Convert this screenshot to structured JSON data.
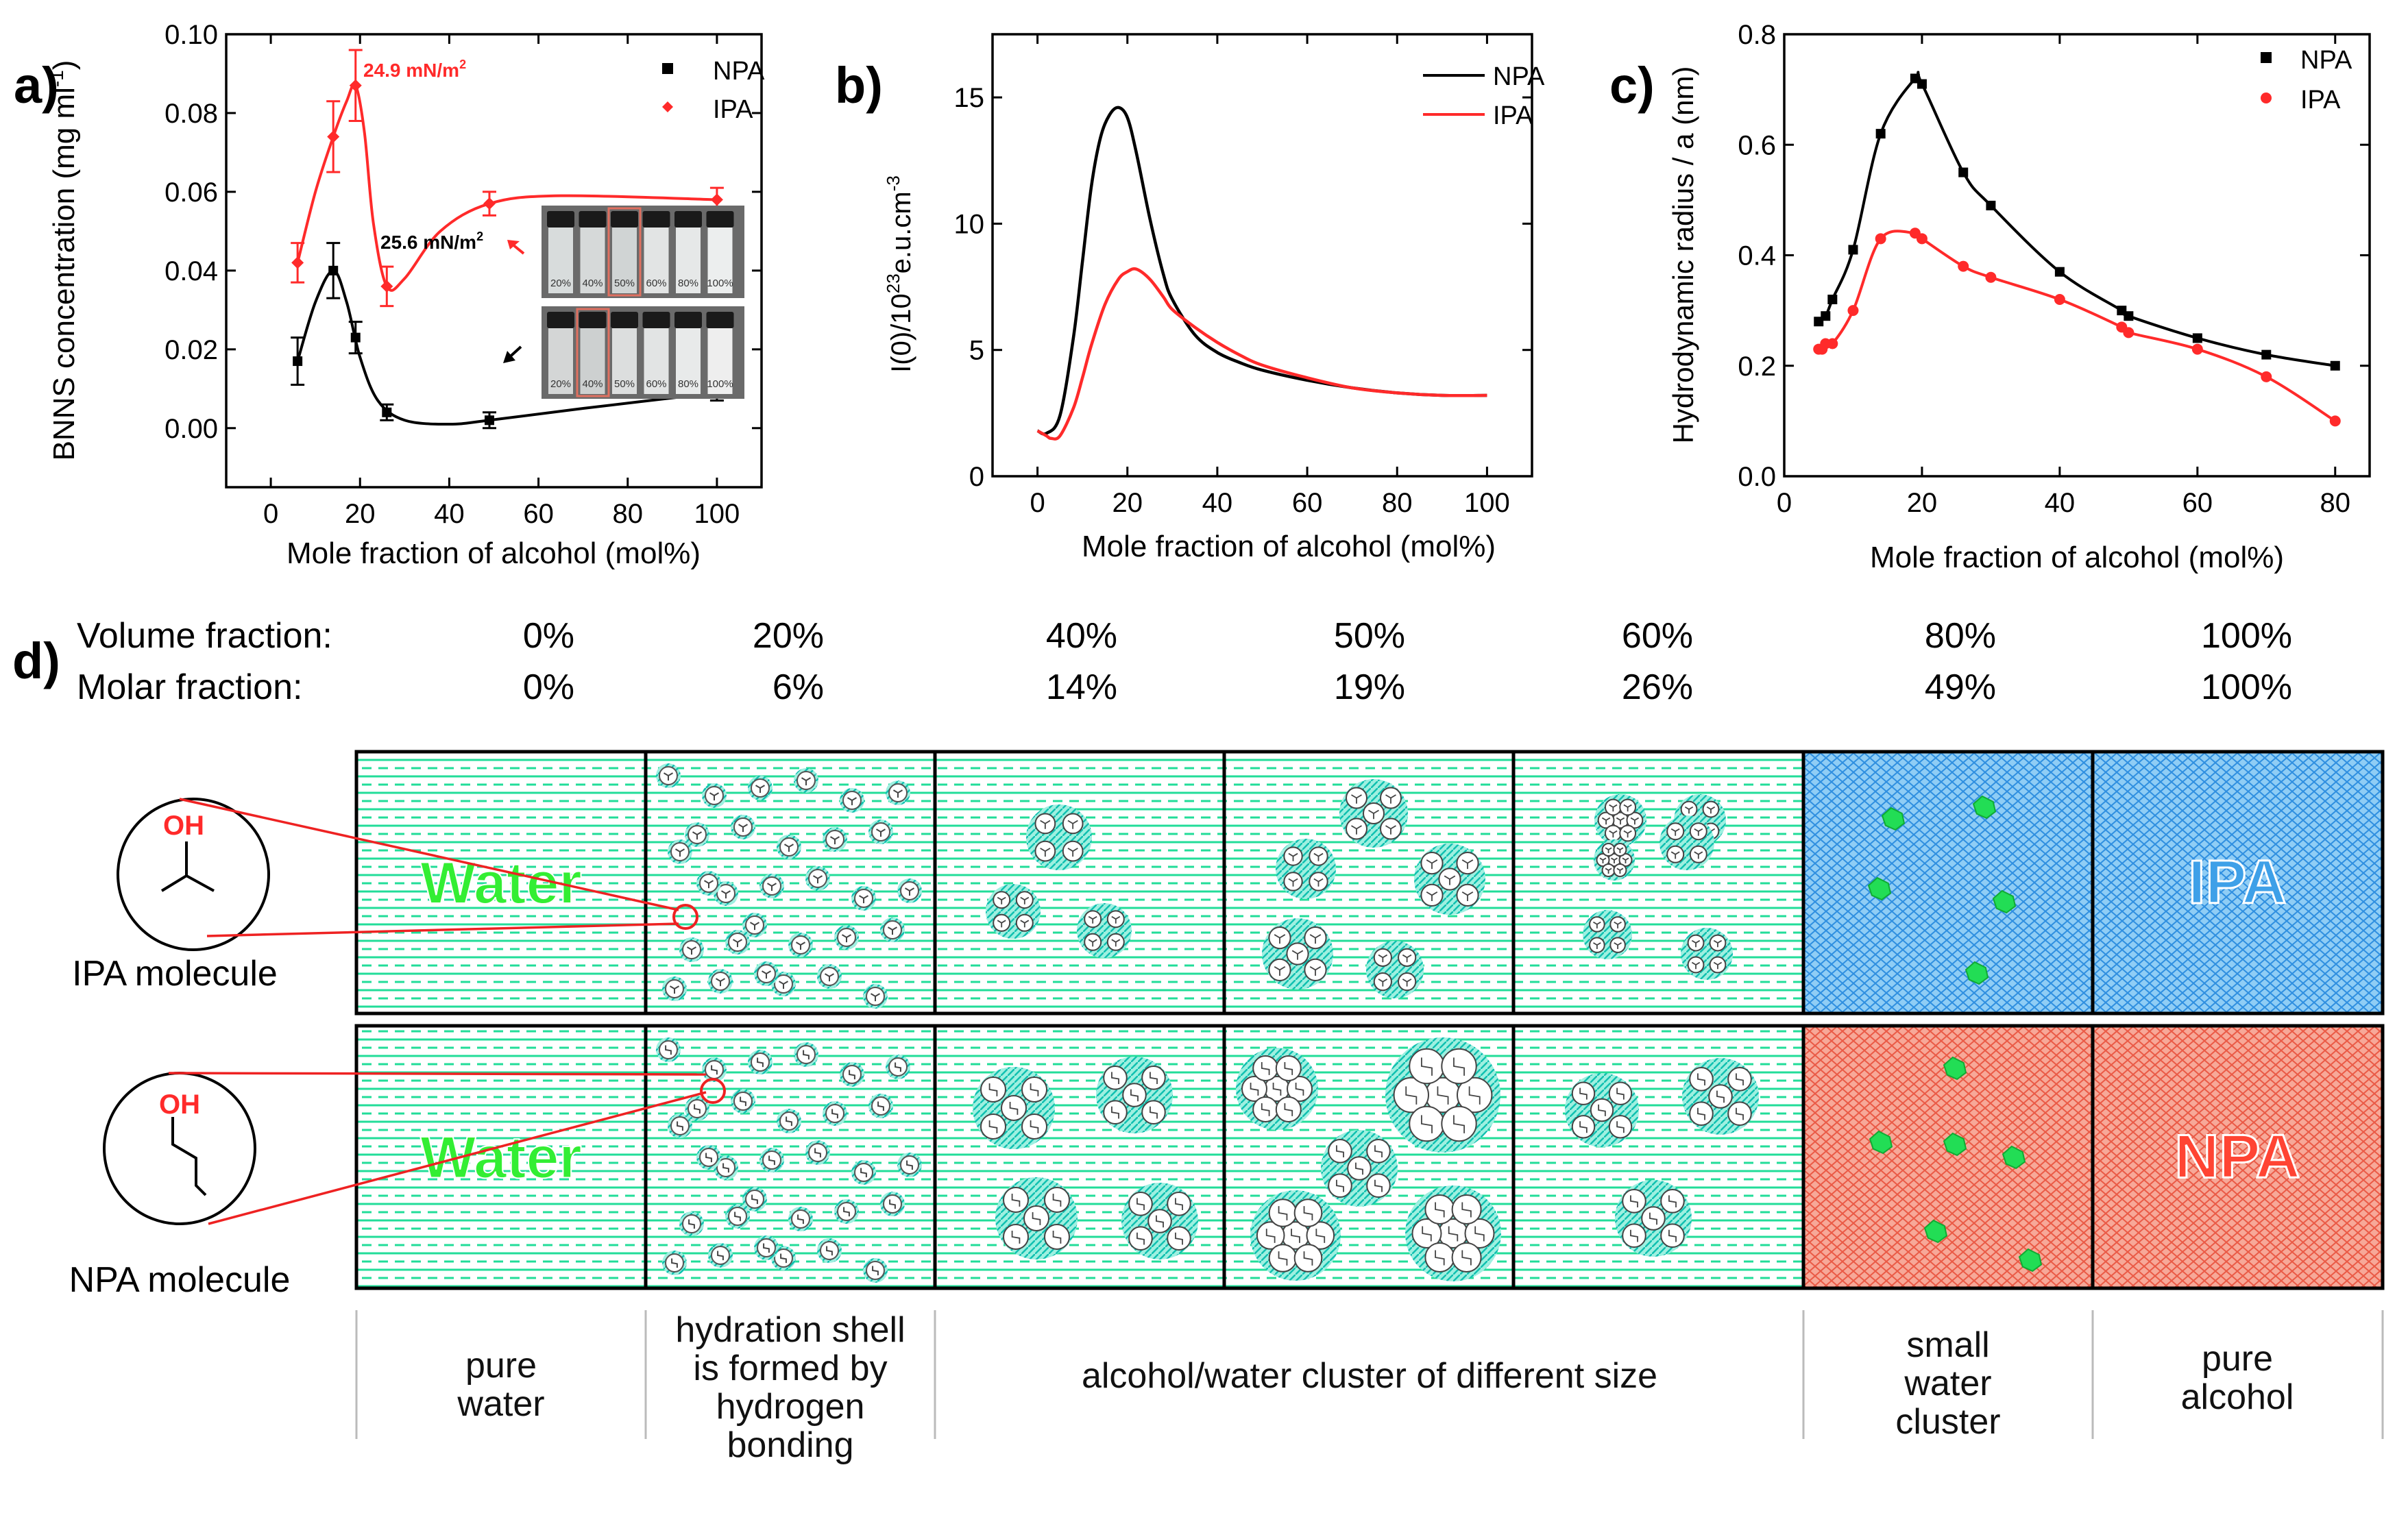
{
  "colors": {
    "black": "#000000",
    "red": "#ff2a2a",
    "water": "#20e0a0",
    "water_text": "#33ee33",
    "ipa_blue": "#3ea0e8",
    "npa_red": "#f06050"
  },
  "chart_data": [
    {
      "panel": "a)",
      "type": "line",
      "xlabel": "Mole fraction of alcohol (mol%)",
      "ylabel": "BNNS concentration (mg ml",
      "ylabel_sup": "-1",
      "ylabel_close": ")",
      "xlim": [
        -10,
        110
      ],
      "ylim": [
        -0.015,
        0.1
      ],
      "xticks": [
        0,
        20,
        40,
        60,
        80,
        100
      ],
      "xtick_labels": [
        "0",
        "20",
        "40",
        "60",
        "80",
        "100"
      ],
      "yticks": [
        0.0,
        0.02,
        0.04,
        0.06,
        0.08,
        0.1
      ],
      "ytick_labels": [
        "0.00",
        "0.02",
        "0.04",
        "0.06",
        "0.08",
        "0.10"
      ],
      "series": [
        {
          "name": "NPA",
          "marker": "square",
          "x": [
            6,
            14,
            19,
            26,
            49,
            100
          ],
          "y": [
            0.017,
            0.04,
            0.023,
            0.004,
            0.002,
            0.009
          ],
          "err": [
            0.006,
            0.007,
            0.004,
            0.002,
            0.002,
            0.002
          ]
        },
        {
          "name": "IPA",
          "marker": "diamond",
          "x": [
            6,
            14,
            19,
            26,
            49,
            100
          ],
          "y": [
            0.042,
            0.074,
            0.087,
            0.036,
            0.057,
            0.058
          ],
          "err": [
            0.005,
            0.009,
            0.009,
            0.005,
            0.003,
            0.003
          ]
        }
      ],
      "curves": {
        "NPA": [
          [
            6,
            0.017
          ],
          [
            10,
            0.032
          ],
          [
            14,
            0.04
          ],
          [
            17,
            0.032
          ],
          [
            20,
            0.018
          ],
          [
            24,
            0.007
          ],
          [
            30,
            0.002
          ],
          [
            40,
            0.001
          ],
          [
            49,
            0.002
          ],
          [
            70,
            0.005
          ],
          [
            100,
            0.009
          ]
        ],
        "IPA": [
          [
            6,
            0.042
          ],
          [
            10,
            0.06
          ],
          [
            14,
            0.074
          ],
          [
            17,
            0.083
          ],
          [
            19,
            0.087
          ],
          [
            21,
            0.075
          ],
          [
            23,
            0.052
          ],
          [
            26,
            0.036
          ],
          [
            30,
            0.038
          ],
          [
            38,
            0.05
          ],
          [
            49,
            0.057
          ],
          [
            65,
            0.059
          ],
          [
            100,
            0.058
          ]
        ]
      },
      "annotations": {
        "ipa_peak": "24.9 mN/m",
        "npa_peak": "25.6 mN/m",
        "unit_sup": "2"
      },
      "vial_labels": [
        "20%",
        "40%",
        "50%",
        "60%",
        "80%",
        "100%"
      ]
    },
    {
      "panel": "b)",
      "type": "line",
      "xlabel": "Mole fraction of alcohol (mol%)",
      "ylabel_parts": [
        "I(0)/10",
        "23",
        "e.u.cm",
        "-3"
      ],
      "xlim": [
        -10,
        110
      ],
      "ylim": [
        0,
        17.5
      ],
      "xticks": [
        0,
        20,
        40,
        60,
        80,
        100
      ],
      "xtick_labels": [
        "0",
        "20",
        "40",
        "60",
        "80",
        "100"
      ],
      "yticks": [
        0,
        5,
        10,
        15
      ],
      "ytick_labels": [
        "0",
        "5",
        "10",
        "15"
      ],
      "series": [
        {
          "name": "NPA",
          "x": [
            0,
            2,
            5,
            8,
            10,
            12,
            14,
            16,
            18,
            20,
            22,
            25,
            28,
            30,
            35,
            40,
            45,
            50,
            60,
            70,
            80,
            90,
            100
          ],
          "y": [
            1.8,
            1.7,
            2.4,
            5.5,
            8.5,
            11.5,
            13.4,
            14.3,
            14.6,
            14.2,
            12.8,
            10.2,
            8.0,
            7.0,
            5.6,
            4.9,
            4.5,
            4.2,
            3.8,
            3.5,
            3.3,
            3.2,
            3.2
          ]
        },
        {
          "name": "IPA",
          "x": [
            0,
            2,
            3,
            5,
            8,
            10,
            12,
            15,
            18,
            20,
            22,
            25,
            28,
            30,
            35,
            40,
            45,
            50,
            60,
            70,
            80,
            90,
            100
          ],
          "y": [
            1.8,
            1.6,
            1.5,
            1.6,
            2.7,
            3.9,
            5.2,
            6.8,
            7.8,
            8.1,
            8.2,
            7.8,
            7.1,
            6.6,
            5.9,
            5.3,
            4.8,
            4.4,
            3.9,
            3.5,
            3.3,
            3.2,
            3.2
          ]
        }
      ]
    },
    {
      "panel": "c)",
      "type": "line",
      "xlabel": "Mole fraction of alcohol (mol%)",
      "ylabel": "Hydrodynamic radius / a (nm)",
      "xlim": [
        0,
        85
      ],
      "ylim": [
        0,
        0.8
      ],
      "xticks": [
        0,
        20,
        40,
        60,
        80
      ],
      "xtick_labels": [
        "0",
        "20",
        "40",
        "60",
        "80"
      ],
      "yticks": [
        0.0,
        0.2,
        0.4,
        0.6,
        0.8
      ],
      "ytick_labels": [
        "0.0",
        "0.2",
        "0.4",
        "0.6",
        "0.8"
      ],
      "series": [
        {
          "name": "NPA",
          "marker": "square",
          "x": [
            5,
            6,
            7,
            10,
            14,
            19,
            20,
            26,
            30,
            40,
            49,
            50,
            60,
            70,
            80
          ],
          "y": [
            0.28,
            0.29,
            0.32,
            0.41,
            0.62,
            0.72,
            0.71,
            0.55,
            0.49,
            0.37,
            0.3,
            0.29,
            0.25,
            0.22,
            0.2
          ]
        },
        {
          "name": "IPA",
          "marker": "circle",
          "x": [
            5,
            5.5,
            6,
            7,
            10,
            14,
            19,
            20,
            26,
            30,
            40,
            49,
            50,
            60,
            70,
            80
          ],
          "y": [
            0.23,
            0.23,
            0.24,
            0.24,
            0.3,
            0.43,
            0.44,
            0.43,
            0.38,
            0.36,
            0.32,
            0.27,
            0.26,
            0.23,
            0.18,
            0.1
          ]
        }
      ]
    }
  ],
  "panel_d": {
    "label": "d)",
    "volume_label": "Volume fraction:",
    "molar_label": "Molar fraction:",
    "volume_values": [
      "0%",
      "20%",
      "40%",
      "50%",
      "60%",
      "80%",
      "100%"
    ],
    "molar_values": [
      "0%",
      "6%",
      "14%",
      "19%",
      "26%",
      "49%",
      "100%"
    ],
    "water_label": "Water",
    "ipa_label": "IPA",
    "npa_label": "NPA",
    "oh_label": "OH",
    "ipa_molecule": "IPA molecule",
    "npa_molecule": "NPA molecule",
    "captions": [
      [
        "pure",
        "water"
      ],
      [
        "hydration shell",
        "is formed by",
        "hydrogen",
        "bonding"
      ],
      [
        "alcohol/water cluster of different size"
      ],
      [
        "small",
        "water",
        "cluster"
      ],
      [
        "pure",
        "alcohol"
      ]
    ]
  }
}
